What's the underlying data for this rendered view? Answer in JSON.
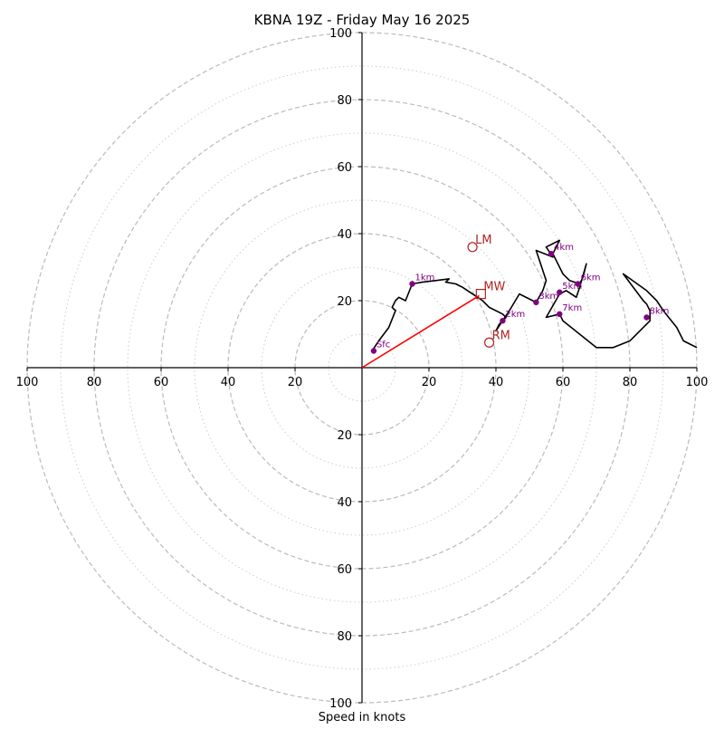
{
  "chart_data": {
    "type": "scatter",
    "title": "KBNA 19Z - Friday May 16 2025",
    "xlabel": "Speed in knots",
    "xlim": [
      -100,
      100
    ],
    "ylim": [
      -100,
      100
    ],
    "rings": {
      "major": [
        20,
        40,
        60,
        80,
        100
      ],
      "minor": [
        10,
        30,
        50,
        70,
        90
      ]
    },
    "ticks": {
      "x": [
        {
          "v": -100,
          "label": "100"
        },
        {
          "v": -80,
          "label": "80"
        },
        {
          "v": -60,
          "label": "60"
        },
        {
          "v": -40,
          "label": "40"
        },
        {
          "v": -20,
          "label": "20"
        },
        {
          "v": 20,
          "label": "20"
        },
        {
          "v": 40,
          "label": "40"
        },
        {
          "v": 60,
          "label": "60"
        },
        {
          "v": 80,
          "label": "80"
        },
        {
          "v": 100,
          "label": "100"
        }
      ],
      "y": [
        {
          "v": 100,
          "label": "100"
        },
        {
          "v": 80,
          "label": "80"
        },
        {
          "v": 60,
          "label": "60"
        },
        {
          "v": 40,
          "label": "40"
        },
        {
          "v": 20,
          "label": "20"
        },
        {
          "v": -20,
          "label": "20"
        },
        {
          "v": -40,
          "label": "40"
        },
        {
          "v": -60,
          "label": "60"
        },
        {
          "v": -80,
          "label": "80"
        },
        {
          "v": -100,
          "label": "100"
        }
      ]
    },
    "hodograph": [
      [
        3,
        5
      ],
      [
        5,
        8
      ],
      [
        8,
        12
      ],
      [
        10,
        17
      ],
      [
        9,
        18
      ],
      [
        10,
        20
      ],
      [
        11,
        21
      ],
      [
        13,
        20
      ],
      [
        15,
        25
      ],
      [
        18,
        25.5
      ],
      [
        22,
        26
      ],
      [
        26,
        26.5
      ],
      [
        25,
        25.5
      ],
      [
        28,
        25
      ],
      [
        30,
        24
      ],
      [
        33,
        22
      ],
      [
        36,
        20
      ],
      [
        38,
        18
      ],
      [
        42,
        16
      ],
      [
        43,
        15
      ],
      [
        42,
        14
      ],
      [
        41,
        13
      ],
      [
        40,
        11
      ],
      [
        44,
        17
      ],
      [
        47,
        22
      ],
      [
        52,
        19.5
      ],
      [
        54,
        23
      ],
      [
        55,
        26
      ],
      [
        52,
        35
      ],
      [
        57,
        33
      ],
      [
        55,
        36
      ],
      [
        59,
        38
      ],
      [
        57,
        34
      ],
      [
        60,
        28
      ],
      [
        62,
        26
      ],
      [
        65,
        25
      ],
      [
        66,
        27
      ],
      [
        67,
        31
      ],
      [
        65,
        24
      ],
      [
        64,
        21
      ],
      [
        61,
        23
      ],
      [
        59,
        22
      ],
      [
        55,
        15
      ],
      [
        59,
        16
      ],
      [
        60,
        14
      ],
      [
        65,
        10
      ],
      [
        70,
        6
      ],
      [
        75,
        6
      ],
      [
        80,
        8
      ],
      [
        86,
        14
      ],
      [
        86,
        17
      ],
      [
        85,
        19
      ],
      [
        84,
        20
      ],
      [
        78,
        28
      ],
      [
        85,
        23
      ],
      [
        88,
        20
      ],
      [
        90,
        17
      ],
      [
        94,
        12
      ],
      [
        96,
        8
      ],
      [
        100,
        6
      ]
    ],
    "height_points": [
      {
        "label": "Sfc",
        "x": 3.5,
        "y": 5
      },
      {
        "label": "1km",
        "x": 15,
        "y": 25
      },
      {
        "label": "2km",
        "x": 42,
        "y": 14
      },
      {
        "label": "3km",
        "x": 52,
        "y": 19.5
      },
      {
        "label": "4km",
        "x": 56.5,
        "y": 34
      },
      {
        "label": "5km",
        "x": 59,
        "y": 22.5
      },
      {
        "label": "6km",
        "x": 64.5,
        "y": 25
      },
      {
        "label": "7km",
        "x": 59,
        "y": 16
      },
      {
        "label": "8km",
        "x": 85,
        "y": 15
      }
    ],
    "motion_points": [
      {
        "label": "LM",
        "x": 33,
        "y": 36,
        "marker": "circle"
      },
      {
        "label": "MW",
        "x": 35.5,
        "y": 22,
        "marker": "square"
      },
      {
        "label": "RM",
        "x": 38,
        "y": 7.5,
        "marker": "circle"
      }
    ],
    "vector": {
      "x": 35,
      "y": 21.5
    },
    "colors": {
      "hodograph": "#000000",
      "height_points": "#800080",
      "motion": "#b22222",
      "vector": "#ff0000",
      "major_ring": "#bbbbbb",
      "minor_ring": "#cccccc"
    }
  }
}
